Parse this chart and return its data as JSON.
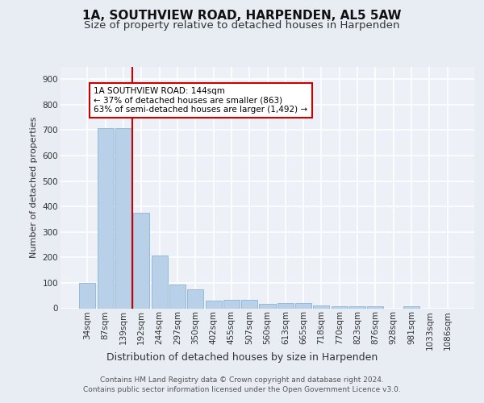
{
  "title": "1A, SOUTHVIEW ROAD, HARPENDEN, AL5 5AW",
  "subtitle": "Size of property relative to detached houses in Harpenden",
  "xlabel": "Distribution of detached houses by size in Harpenden",
  "ylabel": "Number of detached properties",
  "categories": [
    "34sqm",
    "87sqm",
    "139sqm",
    "192sqm",
    "244sqm",
    "297sqm",
    "350sqm",
    "402sqm",
    "455sqm",
    "507sqm",
    "560sqm",
    "613sqm",
    "665sqm",
    "718sqm",
    "770sqm",
    "823sqm",
    "876sqm",
    "928sqm",
    "981sqm",
    "1033sqm",
    "1086sqm"
  ],
  "values": [
    100,
    707,
    707,
    374,
    207,
    95,
    73,
    30,
    32,
    32,
    18,
    20,
    22,
    10,
    7,
    8,
    8,
    0,
    8,
    0,
    0
  ],
  "bar_color": "#b8d0e8",
  "bar_edge_color": "#8ab4d4",
  "annotation_text": "1A SOUTHVIEW ROAD: 144sqm\n← 37% of detached houses are smaller (863)\n63% of semi-detached houses are larger (1,492) →",
  "annotation_box_color": "#ffffff",
  "annotation_box_edge_color": "#cc0000",
  "annotation_text_color": "#000000",
  "vline_color": "#cc0000",
  "vline_x": 2.5,
  "footer": "Contains HM Land Registry data © Crown copyright and database right 2024.\nContains public sector information licensed under the Open Government Licence v3.0.",
  "ylim": [
    0,
    950
  ],
  "yticks": [
    0,
    100,
    200,
    300,
    400,
    500,
    600,
    700,
    800,
    900
  ],
  "bg_color": "#e8edf4",
  "plot_bg_color": "#edf1f7",
  "grid_color": "#ffffff",
  "title_fontsize": 11,
  "subtitle_fontsize": 9.5,
  "xlabel_fontsize": 9,
  "ylabel_fontsize": 8,
  "tick_fontsize": 7.5,
  "annotation_fontsize": 7.5,
  "footer_fontsize": 6.5
}
